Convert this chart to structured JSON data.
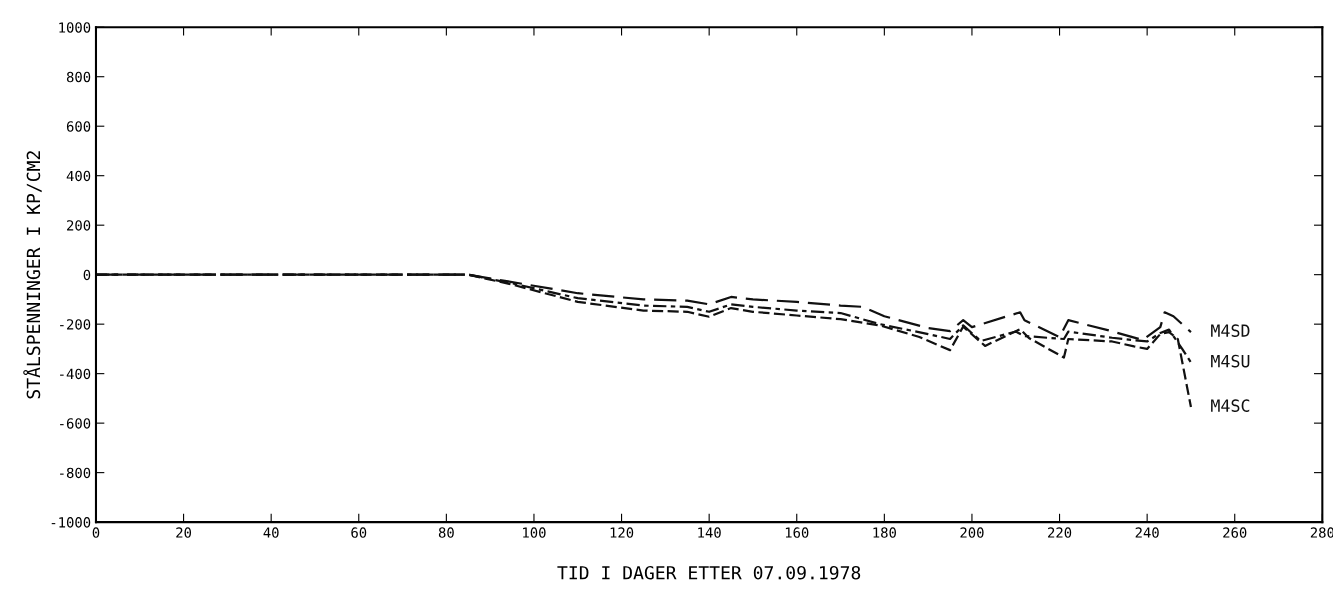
{
  "chart_data": {
    "type": "line",
    "xlabel": "TID I DAGER ETTER 07.09.1978",
    "ylabel": "STÅLSPENNINGER I KP/CM2",
    "xlim": [
      0,
      280
    ],
    "xticks": [
      0,
      20,
      40,
      60,
      80,
      100,
      120,
      140,
      160,
      180,
      200,
      220,
      240,
      260,
      280
    ],
    "ylim": [
      -1000,
      1000
    ],
    "yticks": [
      -1000,
      -800,
      -600,
      -400,
      -200,
      0,
      200,
      400,
      600,
      800,
      1000
    ],
    "grid": false,
    "legend": false,
    "marker": "none",
    "series": [
      {
        "name": "M4SD",
        "color": "#111111",
        "line_style": "dashed",
        "x": [
          0,
          85,
          95,
          110,
          125,
          135,
          140,
          145,
          150,
          160,
          170,
          175,
          180,
          190,
          195,
          198,
          200,
          211,
          212,
          220,
          222,
          231,
          239,
          243,
          244,
          246,
          250
        ],
        "values": [
          0,
          0,
          -30,
          -75,
          -100,
          -105,
          -120,
          -90,
          -100,
          -110,
          -125,
          -130,
          -168,
          -216,
          -228,
          -184,
          -212,
          -152,
          -184,
          -252,
          -184,
          -224,
          -264,
          -212,
          -152,
          -168,
          -232
        ]
      },
      {
        "name": "M4SU",
        "color": "#111111",
        "line_style": "dashed",
        "x": [
          0,
          85,
          95,
          110,
          125,
          135,
          140,
          145,
          150,
          160,
          170,
          179,
          190,
          195,
          198,
          202,
          210,
          212,
          221,
          222,
          232,
          237,
          240,
          243,
          245,
          248,
          250
        ],
        "values": [
          0,
          0,
          -35,
          -95,
          -125,
          -130,
          -150,
          -120,
          -130,
          -145,
          -155,
          -200,
          -240,
          -260,
          -205,
          -268,
          -230,
          -248,
          -260,
          -230,
          -255,
          -265,
          -270,
          -236,
          -222,
          -300,
          -355
        ]
      },
      {
        "name": "M4SC",
        "color": "#111111",
        "line_style": "dashed",
        "x": [
          0,
          85,
          95,
          110,
          125,
          135,
          140,
          145,
          150,
          160,
          170,
          179,
          188,
          195,
          198,
          203,
          211,
          213,
          221,
          222,
          232,
          237,
          240,
          243,
          245,
          247,
          250
        ],
        "values": [
          0,
          0,
          -40,
          -110,
          -145,
          -150,
          -170,
          -135,
          -150,
          -165,
          -180,
          -205,
          -252,
          -305,
          -210,
          -288,
          -220,
          -256,
          -335,
          -260,
          -270,
          -290,
          -300,
          -240,
          -232,
          -260,
          -535
        ]
      }
    ]
  }
}
